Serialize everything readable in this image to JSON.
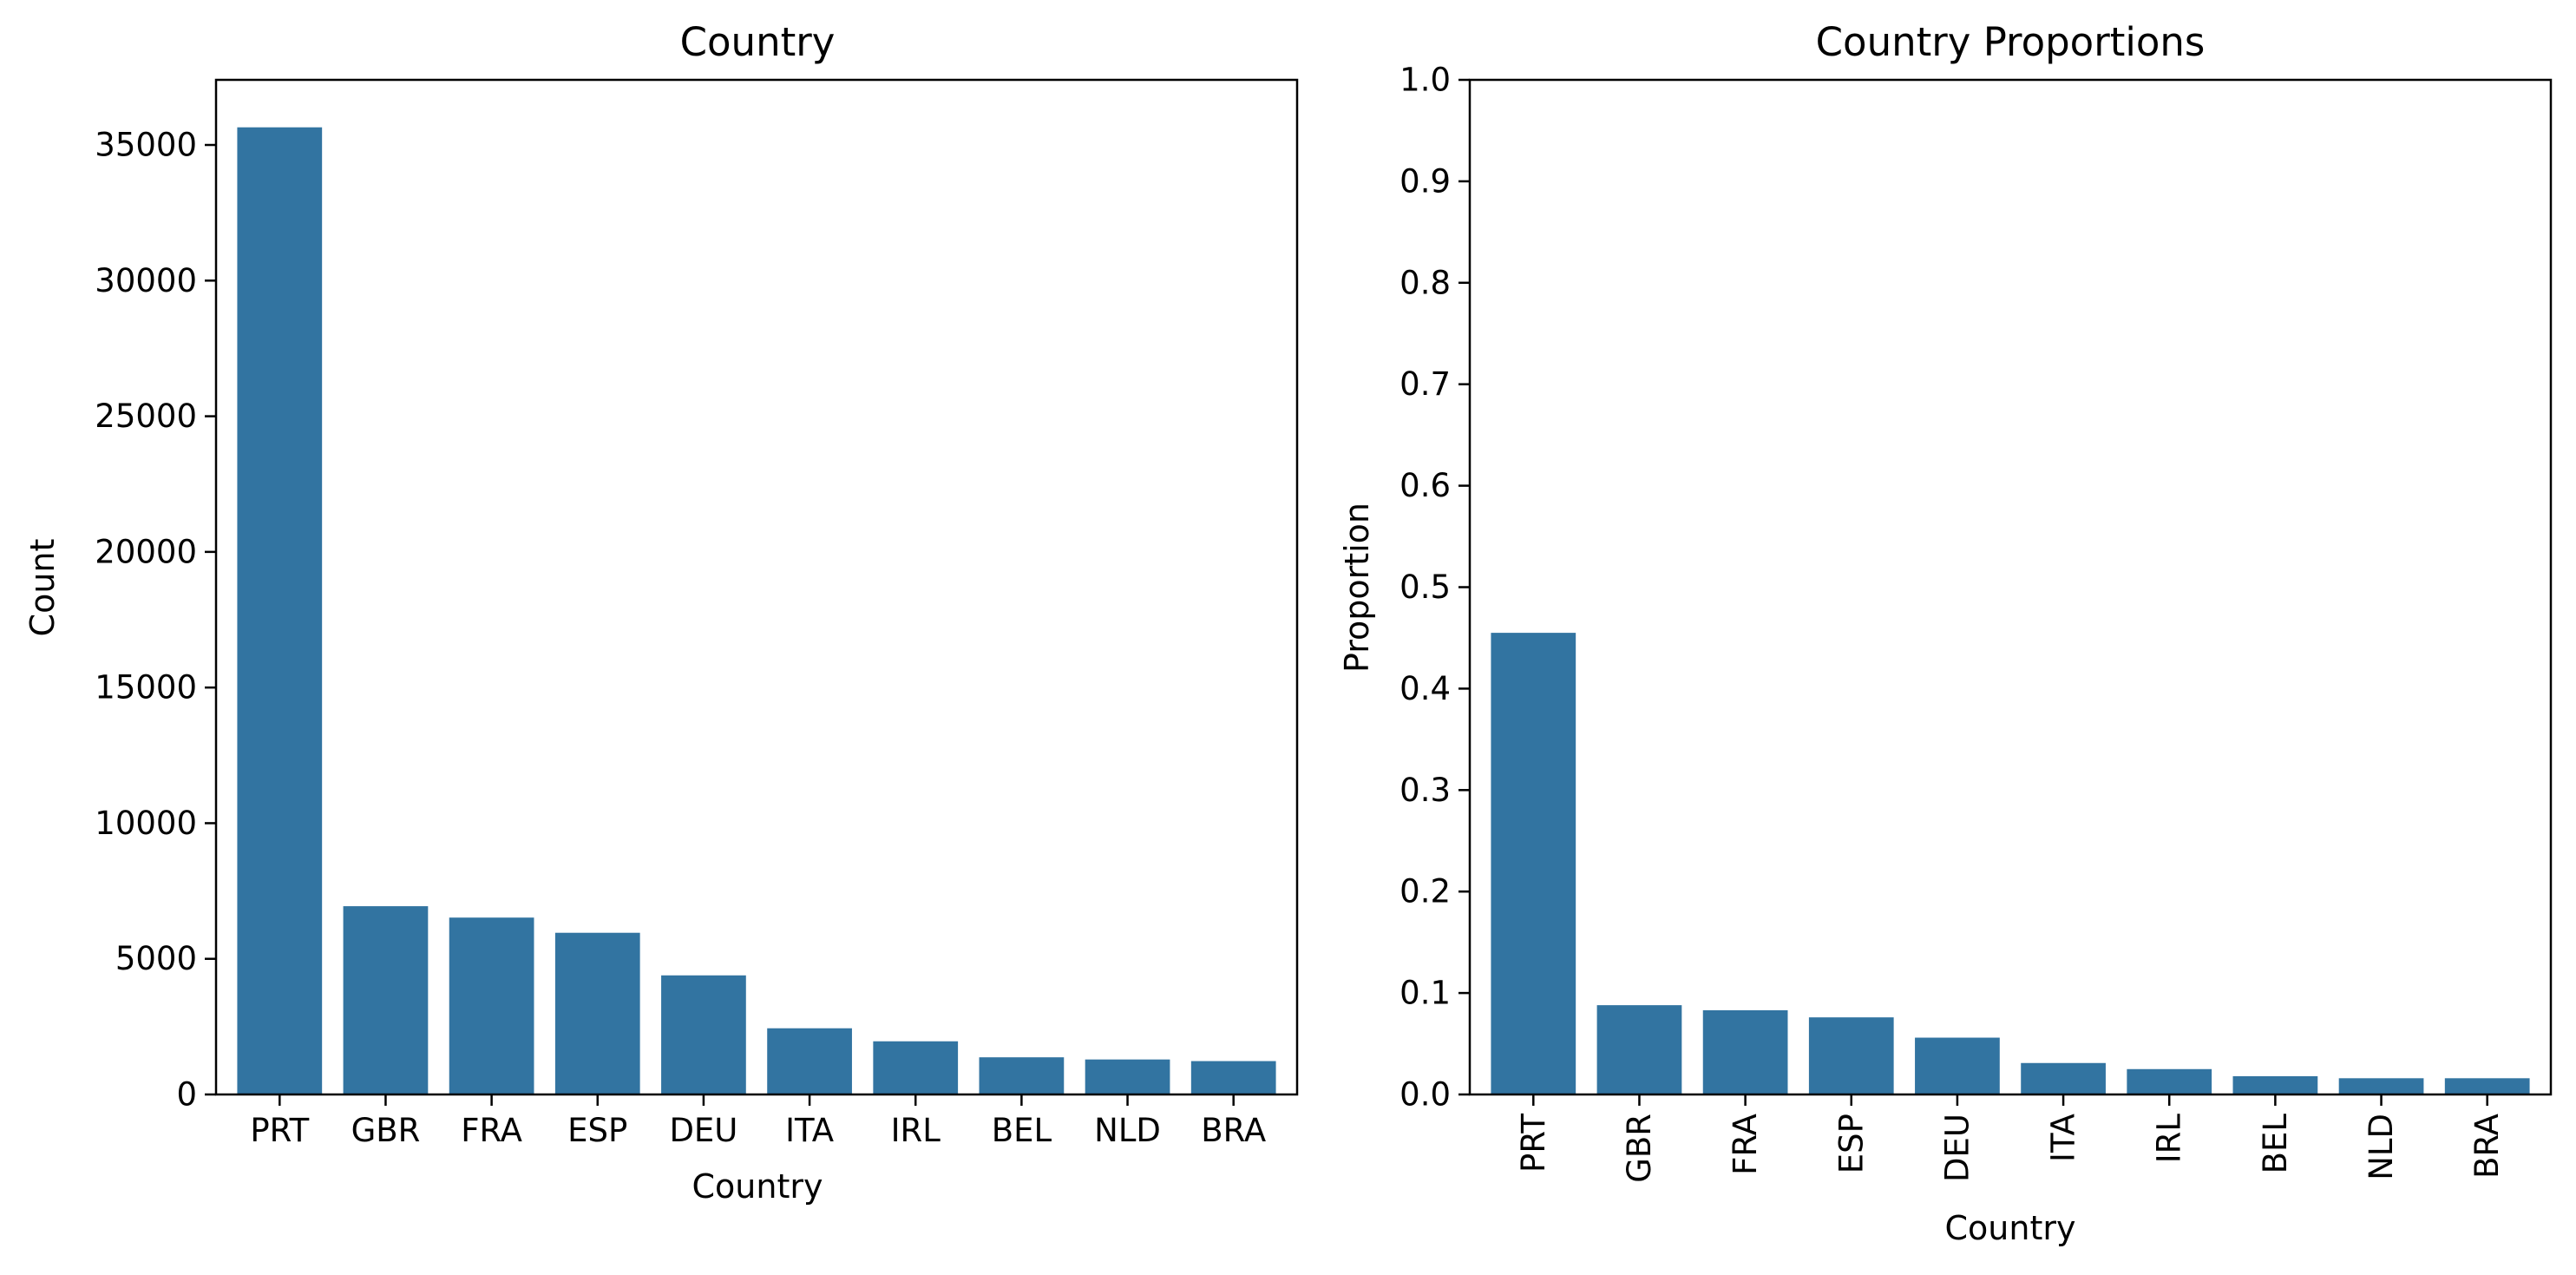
{
  "chart_data": [
    {
      "type": "bar",
      "title": "Country",
      "xlabel": "Country",
      "ylabel": "Count",
      "categories": [
        "PRT",
        "GBR",
        "FRA",
        "ESP",
        "DEU",
        "ITA",
        "IRL",
        "BEL",
        "NLD",
        "BRA"
      ],
      "values": [
        35650,
        6940,
        6520,
        5960,
        4390,
        2440,
        1960,
        1370,
        1290,
        1230
      ],
      "ylim": [
        0,
        37400
      ],
      "yticks": [
        0,
        5000,
        10000,
        15000,
        20000,
        25000,
        30000,
        35000
      ],
      "ytick_labels": [
        "0",
        "5000",
        "10000",
        "15000",
        "20000",
        "25000",
        "30000",
        "35000"
      ],
      "xtick_rotation": 0,
      "bar_color": "#3274a1",
      "grid": false,
      "legend": "none"
    },
    {
      "type": "bar",
      "title": "Country Proportions",
      "xlabel": "Country",
      "ylabel": "Proportion",
      "categories": [
        "PRT",
        "GBR",
        "FRA",
        "ESP",
        "DEU",
        "ITA",
        "IRL",
        "BEL",
        "NLD",
        "BRA"
      ],
      "values": [
        0.455,
        0.088,
        0.083,
        0.076,
        0.056,
        0.031,
        0.025,
        0.018,
        0.016,
        0.016
      ],
      "ylim": [
        0,
        1.0
      ],
      "yticks": [
        0,
        0.1,
        0.2,
        0.3,
        0.4,
        0.5,
        0.6,
        0.7,
        0.8,
        0.9,
        1.0
      ],
      "ytick_labels": [
        "0.0",
        "0.1",
        "0.2",
        "0.3",
        "0.4",
        "0.5",
        "0.6",
        "0.7",
        "0.8",
        "0.9",
        "1.0"
      ],
      "xtick_rotation": -90,
      "bar_color": "#3274a1",
      "grid": false,
      "legend": "none"
    }
  ]
}
